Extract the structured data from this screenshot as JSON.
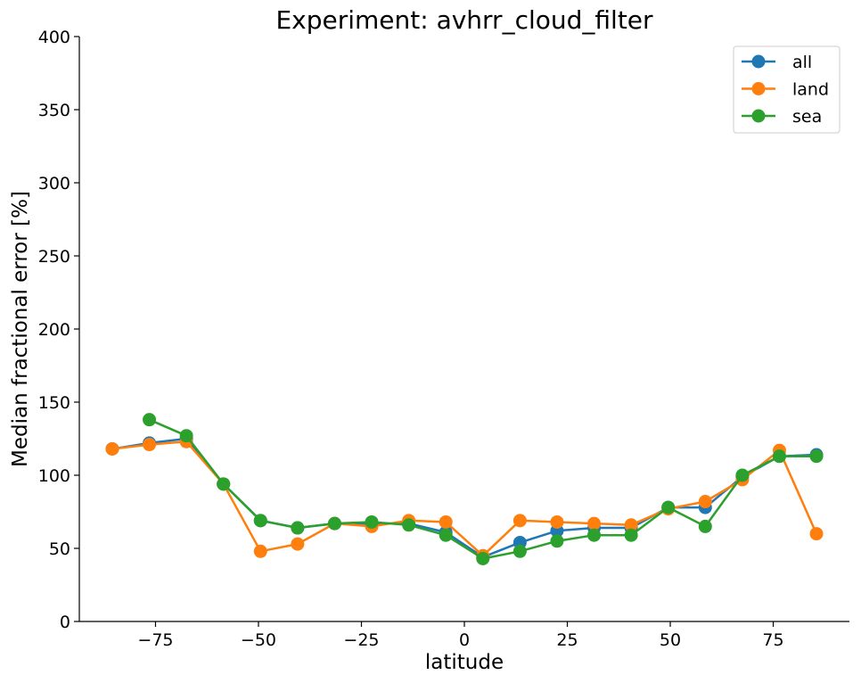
{
  "chart_data": {
    "type": "line",
    "title": "Experiment: avhrr_cloud_filter",
    "xlabel": "latitude",
    "ylabel": "Median fractional error [%]",
    "xlim": [
      -93.5,
      93.5
    ],
    "ylim": [
      0,
      400
    ],
    "xticks": [
      -75,
      -50,
      -25,
      0,
      25,
      50,
      75
    ],
    "xtick_labels": [
      "−75",
      "−50",
      "−25",
      "0",
      "25",
      "50",
      "75"
    ],
    "yticks": [
      0,
      50,
      100,
      150,
      200,
      250,
      300,
      350,
      400
    ],
    "ytick_labels": [
      "0",
      "50",
      "100",
      "150",
      "200",
      "250",
      "300",
      "350",
      "400"
    ],
    "grid": false,
    "legend_position": "top-right",
    "series": [
      {
        "name": "all",
        "color": "#1f77b4",
        "points": [
          [
            -85.5,
            118
          ],
          [
            -76.5,
            122
          ],
          [
            -67.5,
            125
          ],
          [
            -58.5,
            94
          ],
          [
            -49.5,
            69
          ],
          [
            -40.5,
            64
          ],
          [
            -31.5,
            67
          ],
          [
            -22.5,
            67
          ],
          [
            -13.5,
            67
          ],
          [
            -4.5,
            61
          ],
          [
            4.5,
            44
          ],
          [
            13.5,
            54
          ],
          [
            22.5,
            62
          ],
          [
            31.5,
            64
          ],
          [
            40.5,
            64
          ],
          [
            49.5,
            78
          ],
          [
            58.5,
            78
          ],
          [
            67.5,
            99
          ],
          [
            76.5,
            113
          ],
          [
            85.5,
            114
          ]
        ]
      },
      {
        "name": "land",
        "color": "#ff7f0e",
        "points": [
          [
            -85.5,
            118
          ],
          [
            -76.5,
            121
          ],
          [
            -67.5,
            123
          ],
          [
            -58.5,
            94
          ],
          [
            -49.5,
            48
          ],
          [
            -40.5,
            53
          ],
          [
            -31.5,
            67
          ],
          [
            -22.5,
            65
          ],
          [
            -13.5,
            69
          ],
          [
            -4.5,
            68
          ],
          [
            4.5,
            45
          ],
          [
            13.5,
            69
          ],
          [
            22.5,
            68
          ],
          [
            31.5,
            67
          ],
          [
            40.5,
            66
          ],
          [
            49.5,
            77
          ],
          [
            58.5,
            82
          ],
          [
            67.5,
            97
          ],
          [
            76.5,
            117
          ],
          [
            85.5,
            60
          ]
        ]
      },
      {
        "name": "sea",
        "color": "#2ca02c",
        "points": [
          [
            -76.5,
            138
          ],
          [
            -67.5,
            127
          ],
          [
            -58.5,
            94
          ],
          [
            -49.5,
            69
          ],
          [
            -40.5,
            64
          ],
          [
            -31.5,
            67
          ],
          [
            -22.5,
            68
          ],
          [
            -13.5,
            66
          ],
          [
            -4.5,
            59
          ],
          [
            4.5,
            43
          ],
          [
            13.5,
            48
          ],
          [
            22.5,
            55
          ],
          [
            31.5,
            59
          ],
          [
            40.5,
            59
          ],
          [
            49.5,
            78
          ],
          [
            58.5,
            65
          ],
          [
            67.5,
            100
          ],
          [
            76.5,
            113
          ],
          [
            85.5,
            113
          ]
        ]
      }
    ]
  }
}
